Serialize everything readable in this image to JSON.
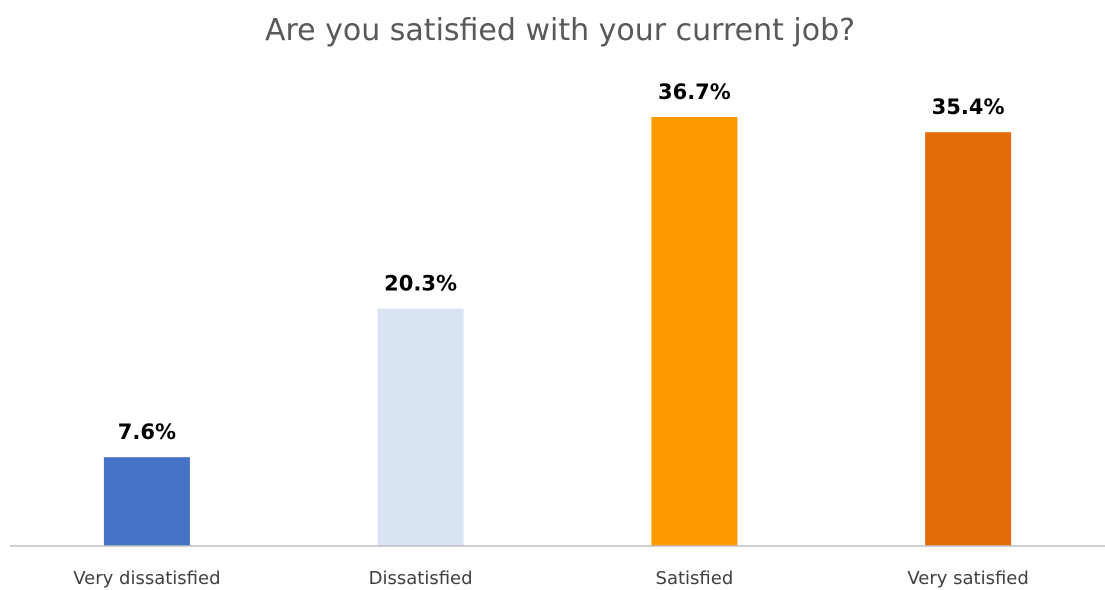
{
  "chart_data": {
    "type": "bar",
    "title": "Are you satisfied with your current job?",
    "categories": [
      "Very dissatisfied",
      "Dissatisfied",
      "Satisfied",
      "Very satisfied"
    ],
    "values": [
      7.6,
      20.3,
      36.7,
      35.4
    ],
    "value_labels": [
      "7.6%",
      "20.3%",
      "36.7%",
      "35.4%"
    ],
    "unit": "%",
    "colors": [
      "#4472C4",
      "#DAE3F3",
      "#FF9900",
      "#E36C0A"
    ],
    "axis_color": "#BFBFBF",
    "ylim": [
      0,
      36.7
    ],
    "grid": false,
    "legend": "none",
    "xlabel": "",
    "ylabel": ""
  }
}
